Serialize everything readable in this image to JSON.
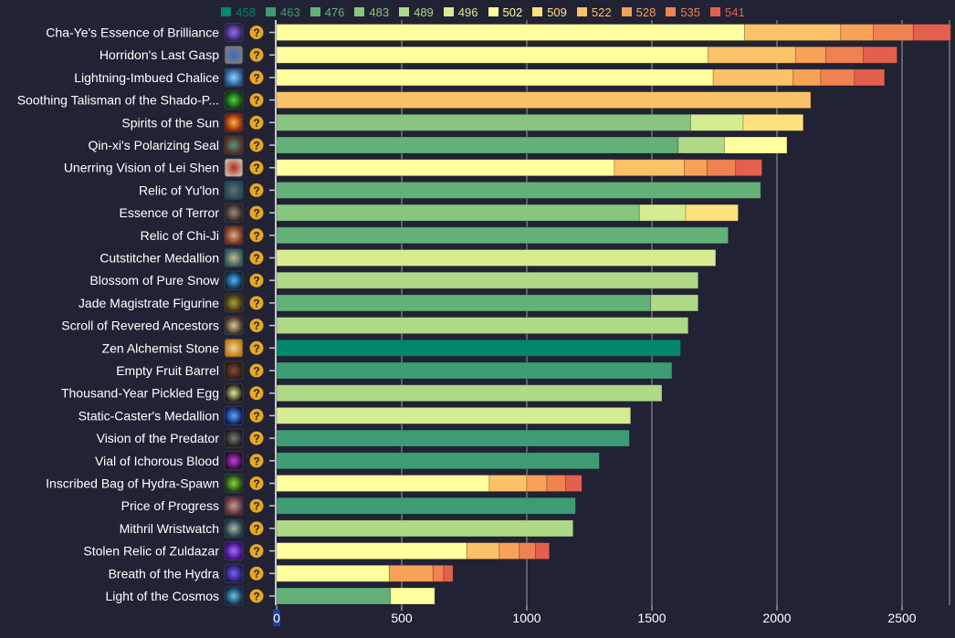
{
  "chart_data": {
    "type": "bar",
    "orientation": "horizontal",
    "stacked": true,
    "title": "",
    "xlabel": "",
    "ylabel": "",
    "xlim": [
      0,
      2700
    ],
    "x_ticks": [
      0,
      500,
      1000,
      1500,
      2000,
      2500
    ],
    "grid": true,
    "legend_position": "top-center",
    "legend": [
      {
        "label": "458",
        "color": "#00876c"
      },
      {
        "label": "463",
        "color": "#3d9c73"
      },
      {
        "label": "476",
        "color": "#63b179"
      },
      {
        "label": "483",
        "color": "#88c580"
      },
      {
        "label": "489",
        "color": "#aed987"
      },
      {
        "label": "496",
        "color": "#d6ec91"
      },
      {
        "label": "502",
        "color": "#ffff9d"
      },
      {
        "label": "509",
        "color": "#fee17e"
      },
      {
        "label": "522",
        "color": "#fcc267"
      },
      {
        "label": "528",
        "color": "#f7a258"
      },
      {
        "label": "535",
        "color": "#ef8250"
      },
      {
        "label": "541",
        "color": "#e4604e"
      }
    ],
    "categories": [
      "Cha-Ye's Essence of Brilliance",
      "Horridon's Last Gasp",
      "Lightning-Imbued Chalice",
      "Soothing Talisman of the Shado-P...",
      "Spirits of the Sun",
      "Qin-xi's Polarizing Seal",
      "Unerring Vision of Lei Shen",
      "Relic of Yu'lon",
      "Essence of Terror",
      "Relic of Chi-Ji",
      "Cutstitcher Medallion",
      "Blossom of Pure Snow",
      "Jade Magistrate Figurine",
      "Scroll of Revered Ancestors",
      "Zen Alchemist Stone",
      "Empty Fruit Barrel",
      "Thousand-Year Pickled Egg",
      "Static-Caster's Medallion",
      "Vision of the Predator",
      "Vial of Ichorous Blood",
      "Inscribed Bag of Hydra-Spawn",
      "Price of Progress",
      "Mithril Wristwatch",
      "Stolen Relic of Zuldazar",
      "Breath of the Hydra",
      "Light of the Cosmos"
    ],
    "bars": [
      {
        "segments": [
          {
            "ilvl": "502",
            "end": 1870
          },
          {
            "ilvl": "522",
            "end": 2255
          },
          {
            "ilvl": "528",
            "end": 2385
          },
          {
            "ilvl": "535",
            "end": 2545
          },
          {
            "ilvl": "541",
            "end": 2695
          }
        ]
      },
      {
        "segments": [
          {
            "ilvl": "502",
            "end": 1725
          },
          {
            "ilvl": "522",
            "end": 2075
          },
          {
            "ilvl": "528",
            "end": 2195
          },
          {
            "ilvl": "535",
            "end": 2345
          },
          {
            "ilvl": "541",
            "end": 2480
          }
        ]
      },
      {
        "segments": [
          {
            "ilvl": "502",
            "end": 1745
          },
          {
            "ilvl": "522",
            "end": 2065
          },
          {
            "ilvl": "528",
            "end": 2175
          },
          {
            "ilvl": "535",
            "end": 2310
          },
          {
            "ilvl": "541",
            "end": 2430
          }
        ]
      },
      {
        "segments": [
          {
            "ilvl": "522",
            "end": 2135
          }
        ]
      },
      {
        "segments": [
          {
            "ilvl": "483",
            "end": 1655
          },
          {
            "ilvl": "496",
            "end": 1865
          },
          {
            "ilvl": "509",
            "end": 2105
          }
        ]
      },
      {
        "segments": [
          {
            "ilvl": "476",
            "end": 1605
          },
          {
            "ilvl": "489",
            "end": 1790
          },
          {
            "ilvl": "502",
            "end": 2040
          }
        ]
      },
      {
        "segments": [
          {
            "ilvl": "502",
            "end": 1350
          },
          {
            "ilvl": "522",
            "end": 1630
          },
          {
            "ilvl": "528",
            "end": 1720
          },
          {
            "ilvl": "535",
            "end": 1835
          },
          {
            "ilvl": "541",
            "end": 1940
          }
        ]
      },
      {
        "segments": [
          {
            "ilvl": "476",
            "end": 1935
          }
        ]
      },
      {
        "segments": [
          {
            "ilvl": "483",
            "end": 1450
          },
          {
            "ilvl": "496",
            "end": 1635
          },
          {
            "ilvl": "509",
            "end": 1845
          }
        ]
      },
      {
        "segments": [
          {
            "ilvl": "476",
            "end": 1805
          }
        ]
      },
      {
        "segments": [
          {
            "ilvl": "496",
            "end": 1755
          }
        ]
      },
      {
        "segments": [
          {
            "ilvl": "489",
            "end": 1685
          }
        ]
      },
      {
        "segments": [
          {
            "ilvl": "476",
            "end": 1495
          },
          {
            "ilvl": "489",
            "end": 1685
          }
        ]
      },
      {
        "segments": [
          {
            "ilvl": "489",
            "end": 1645
          }
        ]
      },
      {
        "segments": [
          {
            "ilvl": "458",
            "end": 1615
          }
        ]
      },
      {
        "segments": [
          {
            "ilvl": "463",
            "end": 1580
          }
        ]
      },
      {
        "segments": [
          {
            "ilvl": "489",
            "end": 1540
          }
        ]
      },
      {
        "segments": [
          {
            "ilvl": "496",
            "end": 1415
          }
        ]
      },
      {
        "segments": [
          {
            "ilvl": "463",
            "end": 1410
          }
        ]
      },
      {
        "segments": [
          {
            "ilvl": "463",
            "end": 1290
          }
        ]
      },
      {
        "segments": [
          {
            "ilvl": "502",
            "end": 850
          },
          {
            "ilvl": "522",
            "end": 1000
          },
          {
            "ilvl": "528",
            "end": 1080
          },
          {
            "ilvl": "535",
            "end": 1155
          },
          {
            "ilvl": "541",
            "end": 1220
          }
        ]
      },
      {
        "segments": [
          {
            "ilvl": "463",
            "end": 1195
          }
        ]
      },
      {
        "segments": [
          {
            "ilvl": "489",
            "end": 1185
          }
        ]
      },
      {
        "segments": [
          {
            "ilvl": "502",
            "end": 760
          },
          {
            "ilvl": "522",
            "end": 890
          },
          {
            "ilvl": "528",
            "end": 970
          },
          {
            "ilvl": "535",
            "end": 1035
          },
          {
            "ilvl": "541",
            "end": 1090
          }
        ]
      },
      {
        "segments": [
          {
            "ilvl": "502",
            "end": 450
          },
          {
            "ilvl": "528",
            "end": 625
          },
          {
            "ilvl": "535",
            "end": 668
          },
          {
            "ilvl": "541",
            "end": 705
          }
        ]
      },
      {
        "segments": [
          {
            "ilvl": "476",
            "end": 455
          },
          {
            "ilvl": "502",
            "end": 632
          }
        ]
      }
    ],
    "row_icons": [
      {
        "name": "purple-eye-icon",
        "colors": [
          "#2b1f5a",
          "#9a6cf0"
        ]
      },
      {
        "name": "grey-stone-ring-icon",
        "colors": [
          "#7a7a80",
          "#3a6ac8"
        ]
      },
      {
        "name": "blue-lightning-chalice-icon",
        "colors": [
          "#1b4f86",
          "#8fd3ff"
        ]
      },
      {
        "name": "green-orb-icon",
        "colors": [
          "#0c3a0c",
          "#55d43a"
        ]
      },
      {
        "name": "fiery-sun-icon",
        "colors": [
          "#8a1c05",
          "#ffb43a"
        ]
      },
      {
        "name": "teal-seal-icon",
        "colors": [
          "#5a2a1a",
          "#4f9a86"
        ]
      },
      {
        "name": "red-dragon-eye-icon",
        "colors": [
          "#c8b29a",
          "#c0281e"
        ]
      },
      {
        "name": "serpent-relic-icon",
        "colors": [
          "#1e4b5a",
          "#6b6f6a"
        ]
      },
      {
        "name": "dark-chest-icon",
        "colors": [
          "#2a2420",
          "#a08a78"
        ]
      },
      {
        "name": "crane-relic-icon",
        "colors": [
          "#7a2a14",
          "#d8b08a"
        ]
      },
      {
        "name": "thread-spool-medallion-icon",
        "colors": [
          "#2a5a5a",
          "#cbb88a"
        ]
      },
      {
        "name": "blue-blossom-icon",
        "colors": [
          "#0a2a3a",
          "#4ab8ff"
        ]
      },
      {
        "name": "jade-figurine-icon",
        "colors": [
          "#3a2a0a",
          "#a8a03a"
        ]
      },
      {
        "name": "scroll-icon",
        "colors": [
          "#3a2a1a",
          "#d8c8a0"
        ]
      },
      {
        "name": "alchemist-stone-icon",
        "colors": [
          "#c87a0a",
          "#e8d8a0"
        ]
      },
      {
        "name": "fruit-barrel-icon",
        "colors": [
          "#2a1a14",
          "#8a4a3a"
        ]
      },
      {
        "name": "pickled-egg-icon",
        "colors": [
          "#1a1a14",
          "#e8e890"
        ]
      },
      {
        "name": "static-medallion-icon",
        "colors": [
          "#0a1a5a",
          "#5aa8ff"
        ]
      },
      {
        "name": "predator-vision-icon",
        "colors": [
          "#1a1a1e",
          "#7a7a70"
        ]
      },
      {
        "name": "ichorous-vial-icon",
        "colors": [
          "#2a0a2a",
          "#c83ae8"
        ]
      },
      {
        "name": "hydra-spawn-bag-icon",
        "colors": [
          "#1a3a0a",
          "#8ad83a"
        ]
      },
      {
        "name": "price-of-progress-icon",
        "colors": [
          "#5a2a2a",
          "#c89aa0"
        ]
      },
      {
        "name": "wristwatch-icon",
        "colors": [
          "#1a3a3a",
          "#a8b8b0"
        ]
      },
      {
        "name": "zuldazar-relic-icon",
        "colors": [
          "#3a0a7a",
          "#a86aff"
        ]
      },
      {
        "name": "hydra-breath-icon",
        "colors": [
          "#1a1a5a",
          "#7a5aff"
        ]
      },
      {
        "name": "cosmos-light-icon",
        "colors": [
          "#0a2a4a",
          "#6ac8e8"
        ]
      }
    ],
    "help_icon": {
      "glyph": "?",
      "color": "#e5a823"
    }
  }
}
